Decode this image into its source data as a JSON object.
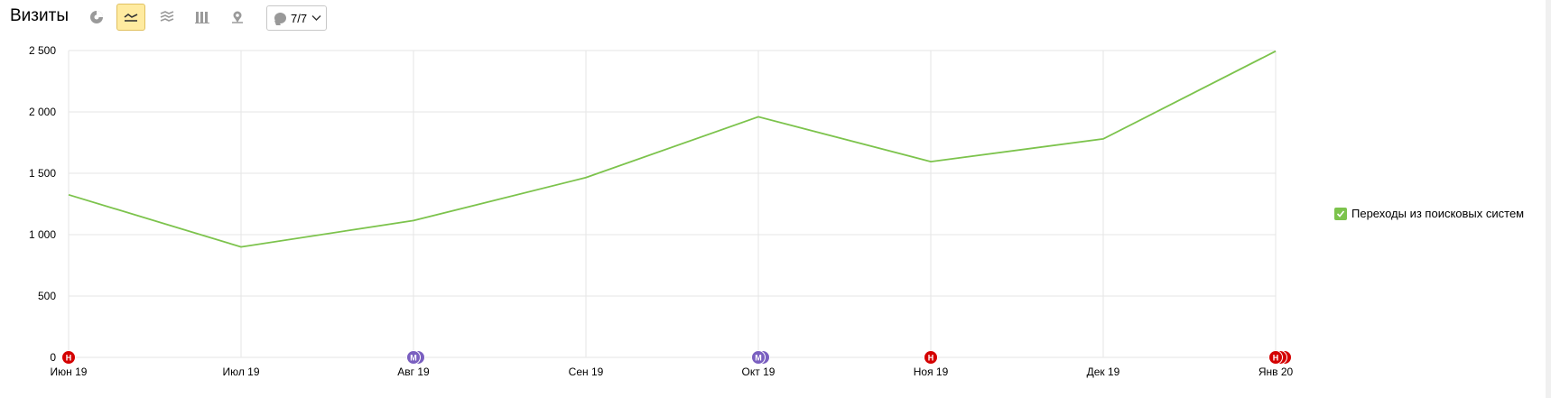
{
  "header": {
    "title": "Визиты",
    "notes_counter": "7/7"
  },
  "colors": {
    "line": "#7cc34c",
    "grid": "#e5e5e5",
    "active_button_bg": "#ffeba0",
    "note_red": "#d40000",
    "note_purple": "#7a5fc0"
  },
  "toolbar_icons": [
    "pie-chart-icon",
    "line-chart-icon",
    "area-chart-icon",
    "bar-chart-icon",
    "map-icon",
    "comment-icon",
    "chevron-down-icon"
  ],
  "chart_data": {
    "type": "line",
    "categories": [
      "Июн 19",
      "Июл 19",
      "Авг 19",
      "Сен 19",
      "Окт 19",
      "Ноя 19",
      "Дек 19",
      "Янв 20"
    ],
    "series": [
      {
        "name": "Переходы из поисковых систем",
        "values": [
          1325,
          900,
          1115,
          1465,
          1960,
          1595,
          1780,
          2495
        ]
      }
    ],
    "ylim": [
      0,
      2500
    ],
    "yticks": [
      0,
      500,
      1000,
      1500,
      2000,
      2500
    ],
    "ytick_labels": [
      "0",
      "500",
      "1 000",
      "1 500",
      "2 000",
      "2 500"
    ],
    "grid": true,
    "legend_position": "right",
    "annotations": [
      {
        "category": "Июн 19",
        "label": "Н",
        "color": "red",
        "count": 1
      },
      {
        "category": "Авг 19",
        "label": "М",
        "color": "purple",
        "count": 2
      },
      {
        "category": "Окт 19",
        "label": "М",
        "color": "purple",
        "count": 2
      },
      {
        "category": "Ноя 19",
        "label": "Н",
        "color": "red",
        "count": 1
      },
      {
        "category": "Янв 20",
        "label": "Н",
        "color": "red",
        "count": 3
      }
    ]
  }
}
